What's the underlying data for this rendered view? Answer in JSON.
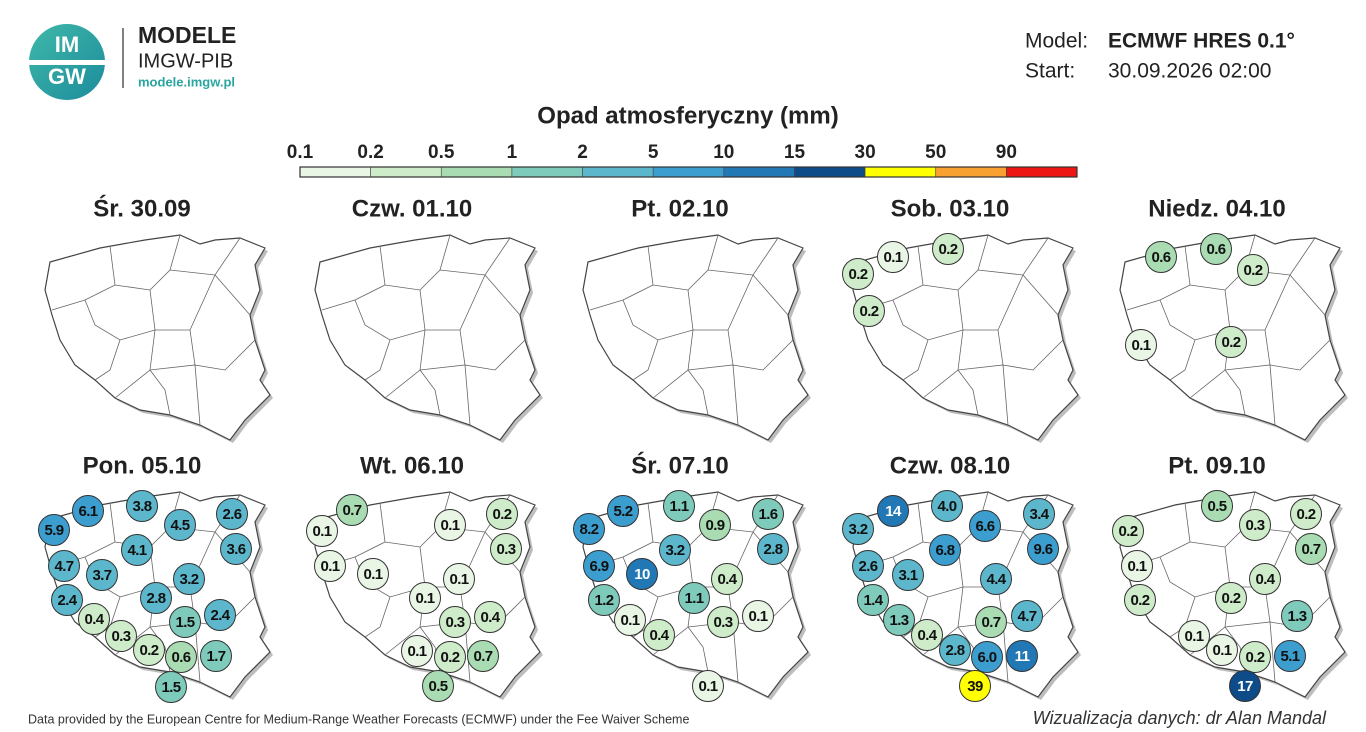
{
  "header": {
    "logo": [
      "IM",
      "GW"
    ],
    "brand": "MODELE",
    "org": "IMGW-PIB",
    "url": "modele.imgw.pl"
  },
  "model_info": {
    "model_label": "Model:",
    "model": "ECMWF HRES 0.1°",
    "start_label": "Start:",
    "start": "30.09.2026 02:00"
  },
  "legend": {
    "title": "Opad atmosferyczny (mm)",
    "ticks": [
      0.1,
      0.2,
      0.5,
      1,
      2,
      5,
      10,
      15,
      30,
      50,
      90
    ],
    "colors": [
      "#e9f6e6",
      "#cfecca",
      "#a9dcb2",
      "#7fcbbb",
      "#5cb7cd",
      "#3c9ecf",
      "#2278b5",
      "#0e4c89",
      "#ffff00",
      "#f8a131",
      "#ee1515"
    ]
  },
  "panels": [
    {
      "title": "Śr. 30.09",
      "values": []
    },
    {
      "title": "Czw. 01.10",
      "values": []
    },
    {
      "title": "Pt. 02.10",
      "values": []
    },
    {
      "title": "Sob. 03.10",
      "values": [
        "0.1",
        "0.2",
        "0.2",
        "0.2"
      ]
    },
    {
      "title": "Niedz. 04.10",
      "values": [
        "0.6",
        "0.6",
        "0.2",
        "0.1",
        "0.2"
      ]
    },
    {
      "title": "Pon. 05.10",
      "values": [
        "5.9",
        "6.1",
        "3.8",
        "4.5",
        "2.6",
        "3.6",
        "4.7",
        "4.1",
        "3.7",
        "2.4",
        "3.2",
        "2.8",
        "0.4",
        "1.5",
        "2.4",
        "0.3",
        "0.2",
        "0.6",
        "1.7",
        "1.5"
      ]
    },
    {
      "title": "Wt. 06.10",
      "values": [
        "0.7",
        "0.1",
        "0.1",
        "0.2",
        "0.3",
        "0.1",
        "0.1",
        "0.1",
        "0.1",
        "0.4",
        "0.3",
        "0.1",
        "0.2",
        "0.7",
        "0.5"
      ]
    },
    {
      "title": "Śr. 07.10",
      "values": [
        "8.2",
        "5.2",
        "1.1",
        "0.9",
        "1.6",
        "2.8",
        "6.9",
        "10",
        "3.2",
        "0.4",
        "1.2",
        "1.1",
        "0.1",
        "0.4",
        "0.3",
        "0.1",
        "0.1"
      ]
    },
    {
      "title": "Czw. 08.10",
      "values": [
        "3.2",
        "14",
        "4.0",
        "6.6",
        "3.4",
        "9.6",
        "2.6",
        "6.8",
        "3.1",
        "4.4",
        "1.4",
        "1.3",
        "0.4",
        "0.7",
        "4.7",
        "2.8",
        "6.0",
        "11",
        "39"
      ]
    },
    {
      "title": "Pt. 09.10",
      "values": [
        "0.5",
        "0.2",
        "0.3",
        "0.2",
        "0.7",
        "0.1",
        "0.2",
        "0.4",
        "0.2",
        "1.3",
        "0.1",
        "0.1",
        "0.2",
        "5.1",
        "17"
      ]
    }
  ],
  "footer": {
    "source": "Data provided by the European Centre for Medium-Range Weather Forecasts (ECMWF) under the Fee Waiver Scheme",
    "credit": "Wizualizacja danych: dr Alan Mandal"
  }
}
